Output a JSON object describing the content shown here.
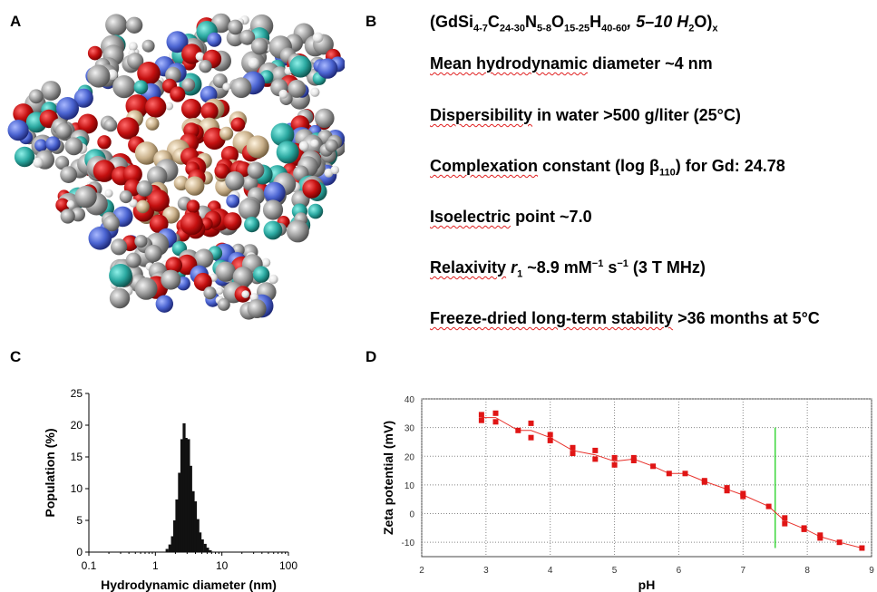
{
  "panels": {
    "a": "A",
    "b": "B",
    "c": "C",
    "d": "D"
  },
  "panel_b": {
    "formula": {
      "prefix": "(GdSi",
      "si": "4-7",
      "c": "C",
      "cn": "24-30",
      "n": "N",
      "nn": "5-8",
      "o": "O",
      "on": "15-25",
      "h": "H",
      "hn": "40-60",
      "water": ", 5–10 H",
      "w2": "2",
      "close": "O)",
      "x": "x"
    },
    "lines": {
      "p1_u": "Mean hydrodynamic",
      "p1_r": " diameter ~4 nm",
      "p2_u": "Dispersibility",
      "p2_r": " in water >500 g/liter (25°C)",
      "p3_u": "Complexation",
      "p3_r": " constant (log β",
      "p3_sub": "110",
      "p3_r2": ") for Gd: 24.78",
      "p4_u": "Isoelectric",
      "p4_r": " point ~7.0",
      "p5_u": "Relaxivity",
      "p5_r1": " ",
      "p5_it": "r",
      "p5_sub": "1",
      "p5_r2": " ~8.9 mM",
      "p5_sup1": "−1",
      "p5_r3": " s",
      "p5_sup2": "−1",
      "p5_r4": " (3 T MHz)",
      "p6_u": "Freeze-dried long-term stability",
      "p6_r": " >36 months at 5°C"
    }
  },
  "chart_data": [
    {
      "type": "bar",
      "panel": "C",
      "xlabel": "Hydrodynamic diameter (nm)",
      "ylabel": "Population (%)",
      "xscale": "log",
      "xlim": [
        0.1,
        100
      ],
      "ylim": [
        0,
        25
      ],
      "xticks": [
        "0.1",
        "1",
        "10",
        "100"
      ],
      "yticks": [
        "0",
        "5",
        "10",
        "15",
        "20",
        "25"
      ],
      "x": [
        1.5,
        1.65,
        1.8,
        1.95,
        2.1,
        2.3,
        2.5,
        2.7,
        2.9,
        3.15,
        3.4,
        3.7,
        4.0,
        4.35,
        4.7,
        5.1,
        5.6,
        6.1,
        6.7
      ],
      "values": [
        0.5,
        1.2,
        2.5,
        5.0,
        8.3,
        12.5,
        17.8,
        20.3,
        18.0,
        17.8,
        13.6,
        9.6,
        8.0,
        5.2,
        3.1,
        2.0,
        1.3,
        0.7,
        0.3
      ],
      "grid": false
    },
    {
      "type": "scatter",
      "panel": "D",
      "xlabel": "pH",
      "ylabel": "Zeta potential (mV)",
      "xlim": [
        2,
        9
      ],
      "ylim": [
        -15,
        40
      ],
      "xticks": [
        "2",
        "3",
        "4",
        "5",
        "6",
        "7",
        "8",
        "9"
      ],
      "yticks": [
        "-10",
        "0",
        "10",
        "20",
        "30",
        "40"
      ],
      "points": [
        [
          2.93,
          34.5
        ],
        [
          2.93,
          32.5
        ],
        [
          3.15,
          35.0
        ],
        [
          3.15,
          32.0
        ],
        [
          3.5,
          29.0
        ],
        [
          3.7,
          31.5
        ],
        [
          3.7,
          26.5
        ],
        [
          4.0,
          27.5
        ],
        [
          4.0,
          25.5
        ],
        [
          4.35,
          23.0
        ],
        [
          4.35,
          21.0
        ],
        [
          4.7,
          22.0
        ],
        [
          4.7,
          19.0
        ],
        [
          5.0,
          19.5
        ],
        [
          5.0,
          17.0
        ],
        [
          5.3,
          19.5
        ],
        [
          5.3,
          18.5
        ],
        [
          5.6,
          16.5
        ],
        [
          5.85,
          14.0
        ],
        [
          6.1,
          14.0
        ],
        [
          6.4,
          11.5
        ],
        [
          6.4,
          11.0
        ],
        [
          6.75,
          9.0
        ],
        [
          6.75,
          8.0
        ],
        [
          7.0,
          7.0
        ],
        [
          7.0,
          6.0
        ],
        [
          7.4,
          2.5
        ],
        [
          7.65,
          -1.5
        ],
        [
          7.65,
          -3.5
        ],
        [
          7.95,
          -5.0
        ],
        [
          7.95,
          -5.5
        ],
        [
          8.2,
          -7.5
        ],
        [
          8.2,
          -8.5
        ],
        [
          8.5,
          -10.0
        ],
        [
          8.85,
          -12.0
        ]
      ],
      "line_color": "#e8302a",
      "marker_color": "#e01515",
      "vline": {
        "x": 7.5,
        "color": "#3cd63c",
        "y_range": [
          -12,
          30
        ]
      },
      "grid": true
    }
  ]
}
